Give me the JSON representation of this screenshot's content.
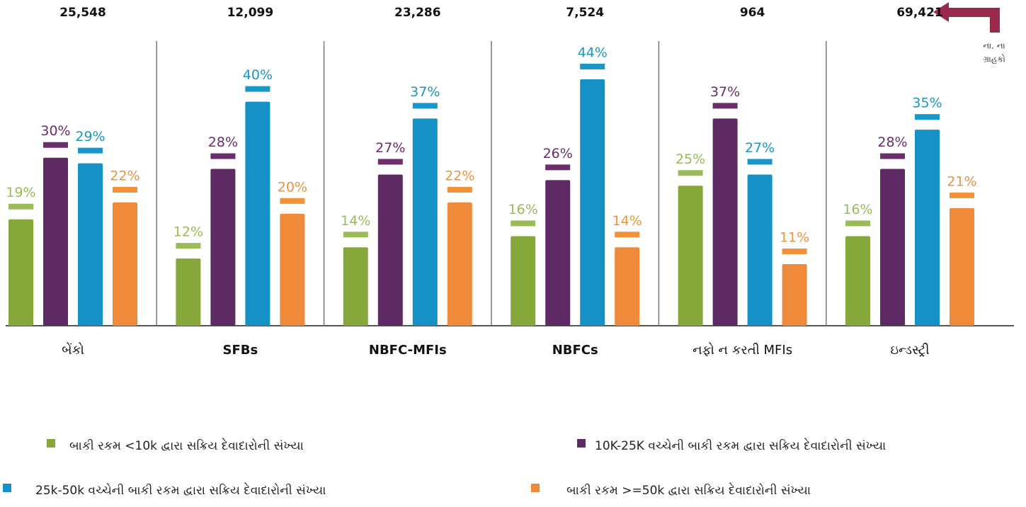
{
  "chart_data": {
    "type": "bar",
    "categories": [
      "બેંકો",
      "SFBs",
      "NBFC-MFIs",
      "NBFCs",
      "નફો ન કરતી MFIs",
      "ઇન્ડસ્ટ્રી"
    ],
    "totals": [
      {
        "value": 25548,
        "label": "25,548"
      },
      {
        "value": 12099,
        "label": "12,099"
      },
      {
        "value": 23286,
        "label": "23,286"
      },
      {
        "value": 7524,
        "label": "7,524"
      },
      {
        "value": 964,
        "label": "964"
      },
      {
        "value": 69421,
        "label": "69,421"
      }
    ],
    "annotation": [
      "ના. ના",
      "ગ્રાહકો"
    ],
    "series": [
      {
        "name": "બાકી રકમ <10k દ્વારા સક્રિય દેવાદારોની સંખ્યા",
        "color": "#86a83a",
        "label_color": "#9bbb59",
        "values": [
          19,
          12,
          14,
          16,
          25,
          16
        ],
        "value_labels": [
          "19%",
          "12%",
          "14%",
          "16%",
          "25%",
          "16%"
        ]
      },
      {
        "name": "10K-25K વચ્ચેની બાકી રકમ દ્વારા સક્રિય દેવાદારોની સંખ્યા",
        "color": "#5e2a63",
        "label_color": "#6b2d6b",
        "values": [
          30,
          28,
          27,
          26,
          37,
          28
        ],
        "value_labels": [
          "30%",
          "28%",
          "27%",
          "26%",
          "37%",
          "28%"
        ]
      },
      {
        "name": "25k-50k વચ્ચેની બાકી રકમ દ્વારા સક્રિય દેવાદારોની સંખ્યા",
        "color": "#1591c6",
        "label_color": "#1a96c8",
        "values": [
          29,
          40,
          37,
          44,
          27,
          35
        ],
        "value_labels": [
          "29%",
          "40%",
          "37%",
          "44%",
          "27%",
          "35%"
        ]
      },
      {
        "name": "બાકી રકમ >=50k દ્વારા સક્રિય દેવાદારોની સંખ્યા",
        "color": "#ee8a3a",
        "label_color": "#f0913c",
        "values": [
          22,
          20,
          22,
          14,
          11,
          21
        ],
        "value_labels": [
          "22%",
          "20%",
          "22%",
          "14%",
          "11%",
          "21%"
        ]
      }
    ]
  }
}
